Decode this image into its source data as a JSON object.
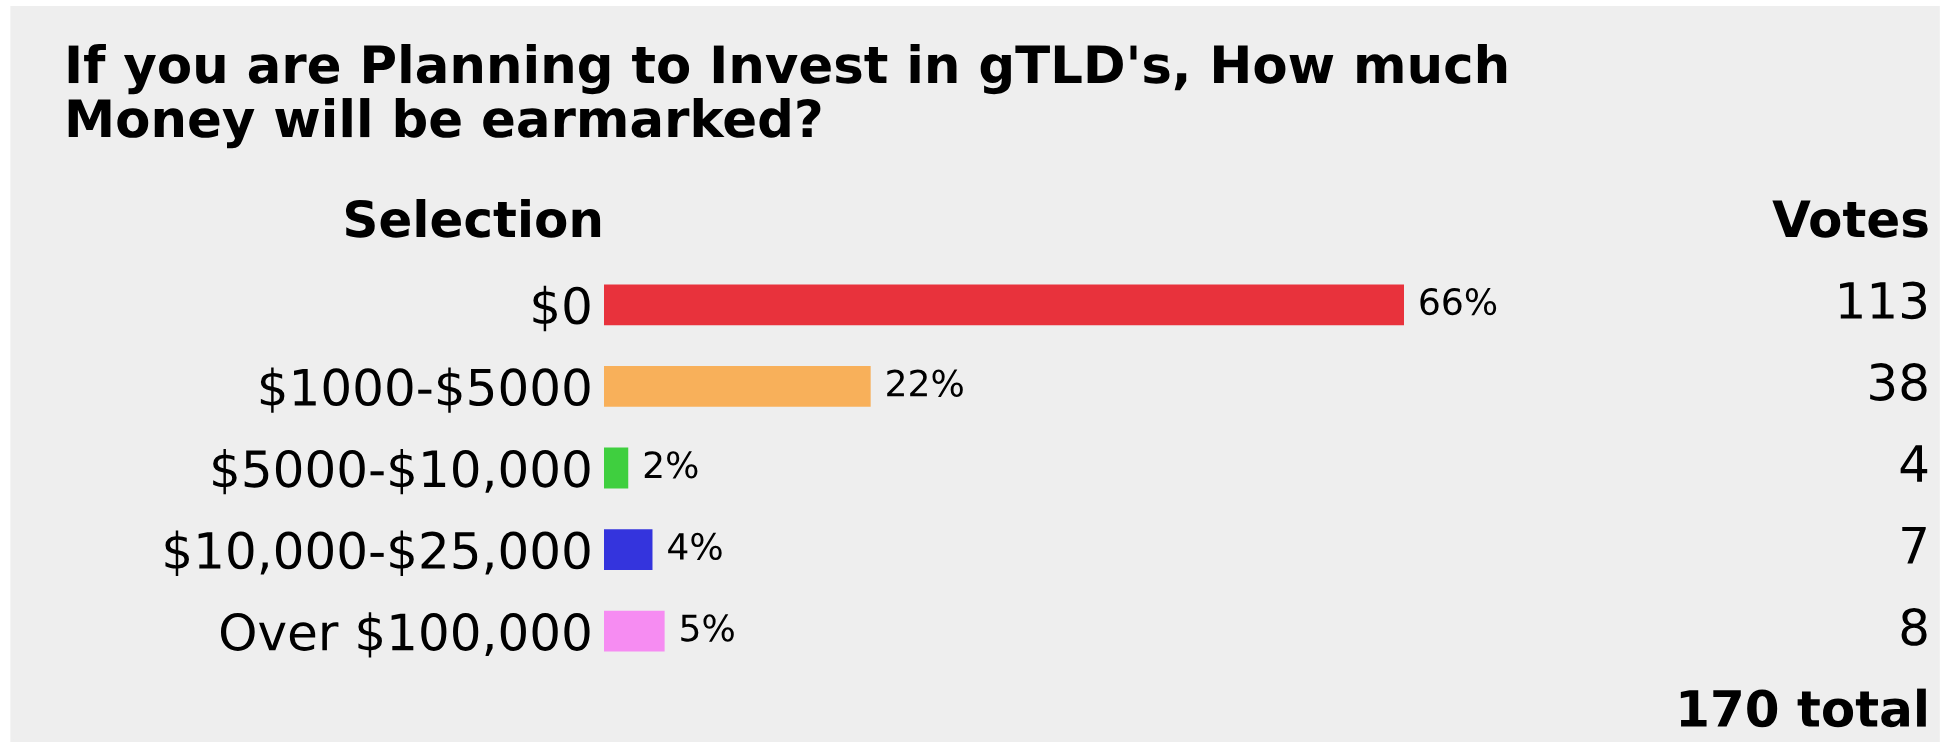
{
  "chart_data": {
    "type": "bar",
    "orientation": "horizontal",
    "title": "If you are Planning to Invest in gTLD's, How much\nMoney will be earmarked?",
    "ylabel": "Selection",
    "categories": [
      "$0",
      "$1000-$5000",
      "$5000-$10,000",
      "$10,000-$25,000",
      "Over $100,000"
    ],
    "values": [
      66,
      22,
      2,
      4,
      5
    ],
    "colors": [
      "#e8323c",
      "#f8b05a",
      "#3fcf3f",
      "#3434dd",
      "#f68cf2"
    ],
    "value_labels": [
      "66%",
      "22%",
      "2%",
      "4%",
      "5%"
    ],
    "grid": false,
    "legend": false,
    "annotations": [
      "Votes",
      "113",
      "38",
      "4",
      "7",
      "8",
      "170 total"
    ]
  }
}
